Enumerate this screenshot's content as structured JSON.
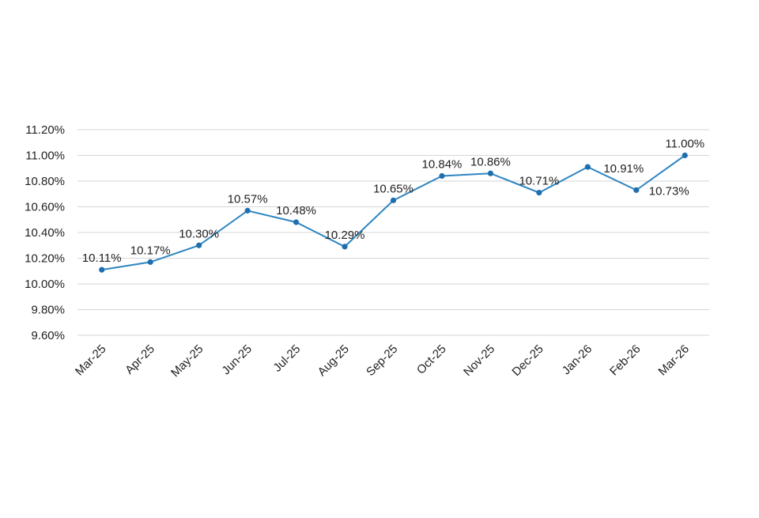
{
  "chart_data": {
    "type": "line",
    "title": "",
    "xlabel": "",
    "ylabel": "",
    "categories": [
      "Mar-25",
      "Apr-25",
      "May-25",
      "Jun-25",
      "Jul-25",
      "Aug-25",
      "Sep-25",
      "Oct-25",
      "Nov-25",
      "Dec-25",
      "Jan-26",
      "Feb-26",
      "Mar-26"
    ],
    "series": [
      {
        "values": [
          10.11,
          10.17,
          10.3,
          10.57,
          10.48,
          10.29,
          10.65,
          10.84,
          10.86,
          10.71,
          10.91,
          10.73,
          11.0
        ]
      }
    ],
    "data_labels": [
      "10.11%",
      "10.17%",
      "10.30%",
      "10.57%",
      "10.48%",
      "10.29%",
      "10.65%",
      "10.84%",
      "10.86%",
      "10.71%",
      "10.91%",
      "10.73%",
      "11.00%"
    ],
    "y_ticks": [
      "9.60%",
      "9.80%",
      "10.00%",
      "10.20%",
      "10.40%",
      "10.60%",
      "10.80%",
      "11.00%",
      "11.20%"
    ],
    "ylim": [
      9.6,
      11.2
    ],
    "grid": true,
    "legend": "none",
    "line_color": "#2e86c1",
    "marker_color": "#1f6fae"
  }
}
